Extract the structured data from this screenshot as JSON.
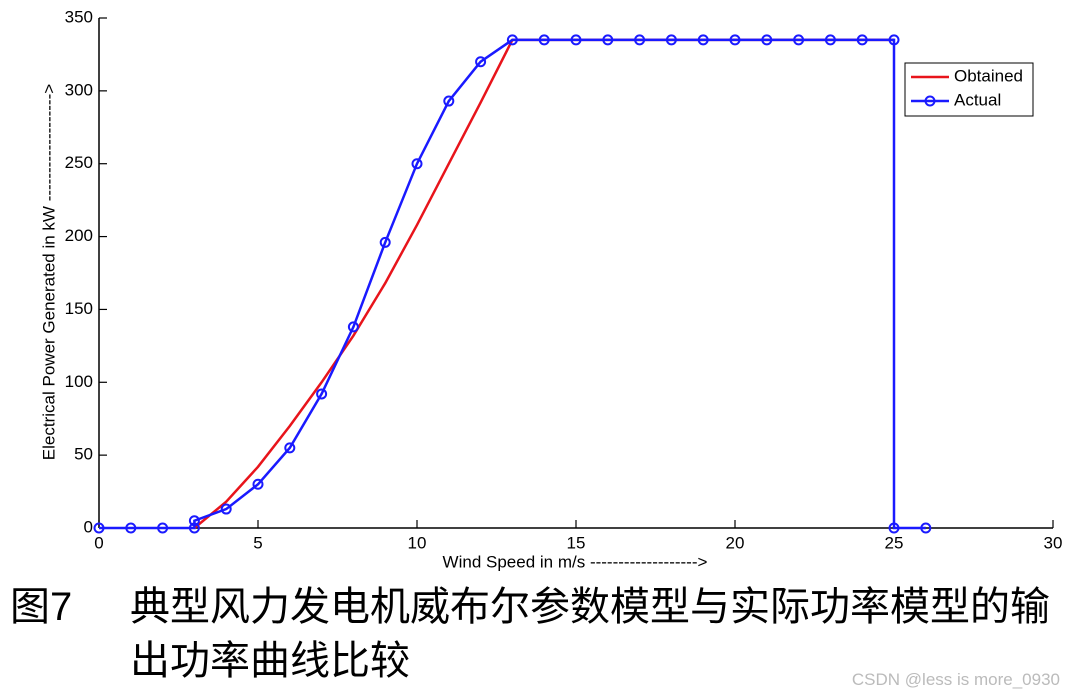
{
  "chart_data": {
    "type": "line",
    "xlabel": "Wind Speed in m/s ------------------->",
    "ylabel": "Electrical Power Generated in kW ------------------->",
    "xlim": [
      0,
      30
    ],
    "xticks": [
      0,
      5,
      10,
      15,
      20,
      25,
      30
    ],
    "ylim": [
      0,
      350
    ],
    "yticks": [
      0,
      50,
      100,
      150,
      200,
      250,
      300,
      350
    ],
    "grid": false,
    "legend": "upper right",
    "series": [
      {
        "name": "Obtained",
        "color": "#e8141b",
        "marker": false,
        "x": [
          3,
          4,
          5,
          6,
          7,
          8,
          9,
          10,
          11,
          12,
          13,
          25
        ],
        "values": [
          0,
          18,
          42,
          70,
          100,
          132,
          168,
          208,
          250,
          292,
          335,
          335
        ]
      },
      {
        "name": "Actual",
        "color": "#1a1aff",
        "marker": true,
        "x": [
          0,
          1,
          2,
          3,
          3,
          4,
          5,
          6,
          7,
          8,
          9,
          10,
          11,
          12,
          13,
          14,
          15,
          16,
          17,
          18,
          19,
          20,
          21,
          22,
          23,
          24,
          25,
          25,
          26
        ],
        "values": [
          0,
          0,
          0,
          0,
          5,
          13,
          30,
          55,
          92,
          138,
          196,
          250,
          293,
          320,
          335,
          335,
          335,
          335,
          335,
          335,
          335,
          335,
          335,
          335,
          335,
          335,
          335,
          0,
          0
        ]
      }
    ]
  },
  "caption": {
    "label": "图7",
    "text": "典型风力发电机威布尔参数模型与实际功率模型的输出功率曲线比较"
  },
  "watermark": "CSDN @less is more_0930"
}
